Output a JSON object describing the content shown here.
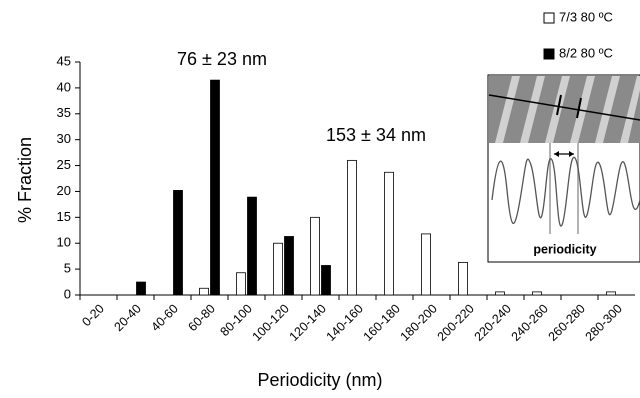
{
  "chart_data": {
    "type": "bar",
    "x_label": "Periodicity (nm)",
    "y_label": "% Fraction",
    "categories": [
      "0-20",
      "20-40",
      "40-60",
      "60-80",
      "80-100",
      "100-120",
      "120-140",
      "140-160",
      "160-180",
      "180-200",
      "200-220",
      "220-240",
      "240-260",
      "260-280",
      "280-300"
    ],
    "series": [
      {
        "name": "7/3 80 ºC",
        "color": "#ffffff",
        "values": [
          0,
          0,
          0,
          1.3,
          4.3,
          10,
          15,
          26,
          23.7,
          11.8,
          6.3,
          0.6,
          0.6,
          0,
          0.6
        ]
      },
      {
        "name": "8/2 80 ºC",
        "color": "#000000",
        "values": [
          0,
          2.5,
          20.2,
          41.5,
          18.9,
          11.3,
          5.7,
          0,
          0,
          0,
          0,
          0,
          0,
          0,
          0
        ]
      }
    ],
    "ylim": [
      0,
      45
    ],
    "yticks": [
      0,
      5,
      10,
      15,
      20,
      25,
      30,
      35,
      40,
      45
    ],
    "annotations": [
      "76 ± 23 nm",
      "153 ± 34 nm"
    ],
    "inset_label": "periodicity"
  }
}
